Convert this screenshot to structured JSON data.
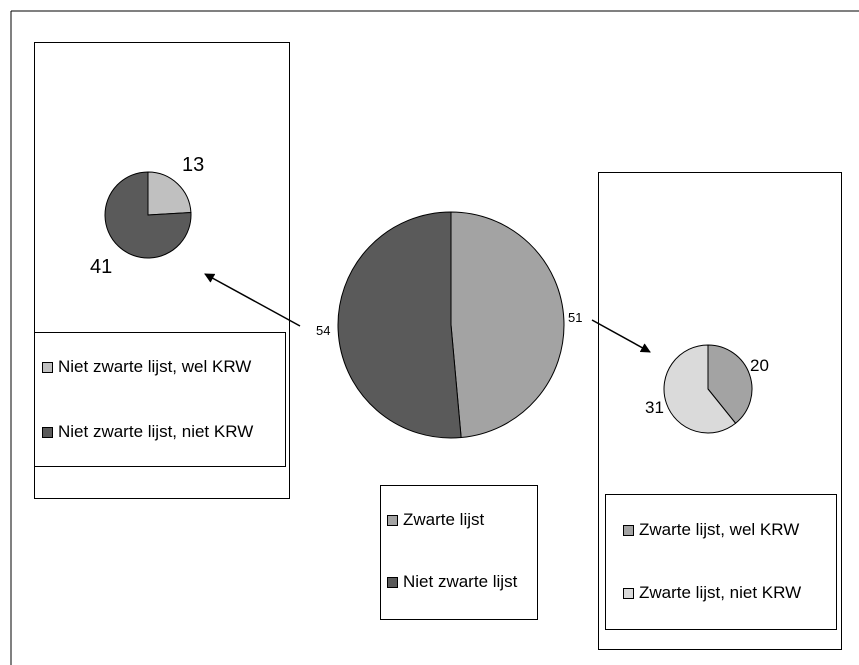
{
  "chart_data": [
    {
      "type": "pie",
      "name_hint": "main",
      "slices": [
        {
          "label": "Zwarte lijst",
          "value": 51,
          "color": "#a3a3a3"
        },
        {
          "label": "Niet zwarte lijst",
          "value": 54,
          "color": "#5a5a5a"
        }
      ],
      "legend": [
        "Zwarte lijst",
        "Niet zwarte lijst"
      ],
      "data_labels": [
        "51",
        "54"
      ]
    },
    {
      "type": "pie",
      "name_hint": "left-sub",
      "slices": [
        {
          "label": "Niet zwarte lijst, wel KRW",
          "value": 13,
          "color": "#c0c0c0"
        },
        {
          "label": "Niet zwarte lijst, niet KRW",
          "value": 41,
          "color": "#5a5a5a"
        }
      ],
      "legend": [
        "Niet zwarte lijst, wel KRW",
        "Niet zwarte lijst, niet KRW"
      ],
      "data_labels": [
        "13",
        "41"
      ]
    },
    {
      "type": "pie",
      "name_hint": "right-sub",
      "slices": [
        {
          "label": "Zwarte lijst, wel KRW",
          "value": 20,
          "color": "#a3a3a3"
        },
        {
          "label": "Zwarte lijst, niet KRW",
          "value": 31,
          "color": "#dadada"
        }
      ],
      "legend": [
        "Zwarte lijst, wel KRW",
        "Zwarte lijst, niet KRW"
      ],
      "data_labels": [
        "20",
        "31"
      ]
    }
  ]
}
